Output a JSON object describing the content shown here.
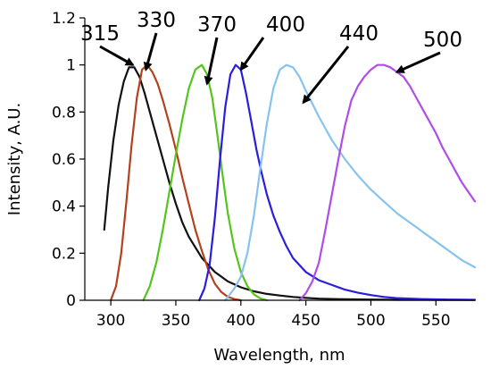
{
  "chart_data": {
    "type": "line",
    "title": "",
    "xlabel": "Wavelength, nm",
    "ylabel": "Intensity, A.U.",
    "xlim": [
      280,
      580
    ],
    "ylim": [
      0,
      1.2
    ],
    "x_ticks": [
      300,
      350,
      400,
      450,
      500,
      550
    ],
    "x_tick_labels": [
      "300",
      "350",
      "400",
      "450",
      "500",
      "550"
    ],
    "y_ticks": [
      0,
      0.2,
      0.4,
      0.6,
      0.8,
      1,
      1.2
    ],
    "y_tick_labels": [
      "0",
      "0.2",
      "0.4",
      "0.6",
      "0.8",
      "1",
      "1.2"
    ],
    "grid": false,
    "legend": "none",
    "series": [
      {
        "color": "#111111",
        "x": [
          295,
          298,
          302,
          306,
          310,
          314,
          318,
          322,
          326,
          330,
          335,
          340,
          345,
          350,
          355,
          360,
          370,
          380,
          390,
          400,
          410,
          420,
          430,
          440,
          450,
          460,
          480,
          500,
          520,
          540,
          560,
          580
        ],
        "y": [
          0.3,
          0.48,
          0.68,
          0.83,
          0.93,
          0.99,
          0.99,
          0.95,
          0.88,
          0.8,
          0.7,
          0.6,
          0.5,
          0.41,
          0.33,
          0.27,
          0.18,
          0.12,
          0.08,
          0.055,
          0.038,
          0.027,
          0.02,
          0.014,
          0.01,
          0.007,
          0.004,
          0.003,
          0.002,
          0.002,
          0.001,
          0.001
        ]
      },
      {
        "color": "#b2421e",
        "x": [
          300,
          304,
          308,
          312,
          316,
          320,
          324,
          328,
          332,
          336,
          340,
          345,
          350,
          355,
          360,
          365,
          370,
          375,
          380,
          385,
          390,
          395,
          400
        ],
        "y": [
          0.0,
          0.06,
          0.2,
          0.42,
          0.66,
          0.86,
          0.98,
          1.0,
          0.97,
          0.92,
          0.85,
          0.75,
          0.64,
          0.52,
          0.41,
          0.3,
          0.21,
          0.13,
          0.07,
          0.035,
          0.015,
          0.005,
          0.0
        ]
      },
      {
        "color": "#55c41e",
        "x": [
          325,
          330,
          335,
          340,
          345,
          350,
          355,
          360,
          365,
          370,
          374,
          378,
          382,
          386,
          390,
          395,
          400,
          405,
          410,
          415,
          420
        ],
        "y": [
          0.0,
          0.06,
          0.16,
          0.3,
          0.46,
          0.62,
          0.77,
          0.9,
          0.98,
          1.0,
          0.96,
          0.86,
          0.7,
          0.53,
          0.37,
          0.22,
          0.12,
          0.06,
          0.025,
          0.008,
          0.0
        ]
      },
      {
        "color": "#2a1ddc",
        "x": [
          368,
          372,
          376,
          380,
          384,
          388,
          392,
          396,
          400,
          404,
          408,
          412,
          416,
          420,
          425,
          430,
          435,
          440,
          450,
          460,
          470,
          480,
          490,
          500,
          510,
          520,
          540,
          560,
          580
        ],
        "y": [
          0.0,
          0.05,
          0.15,
          0.35,
          0.6,
          0.82,
          0.96,
          1.0,
          0.98,
          0.88,
          0.76,
          0.64,
          0.54,
          0.45,
          0.36,
          0.29,
          0.23,
          0.18,
          0.12,
          0.085,
          0.065,
          0.045,
          0.032,
          0.022,
          0.014,
          0.009,
          0.005,
          0.003,
          0.002
        ]
      },
      {
        "color": "#87c3ef",
        "x": [
          388,
          395,
          400,
          405,
          410,
          415,
          420,
          425,
          430,
          435,
          440,
          445,
          450,
          460,
          470,
          480,
          490,
          500,
          510,
          520,
          530,
          540,
          550,
          560,
          570,
          580
        ],
        "y": [
          0.0,
          0.05,
          0.1,
          0.2,
          0.36,
          0.56,
          0.75,
          0.9,
          0.98,
          1.0,
          0.99,
          0.95,
          0.89,
          0.78,
          0.68,
          0.6,
          0.53,
          0.47,
          0.42,
          0.37,
          0.33,
          0.29,
          0.25,
          0.21,
          0.17,
          0.14
        ]
      },
      {
        "color": "#b04de8",
        "x": [
          445,
          450,
          455,
          460,
          465,
          470,
          475,
          480,
          485,
          490,
          495,
          500,
          505,
          510,
          515,
          520,
          525,
          530,
          535,
          540,
          545,
          550,
          555,
          560,
          565,
          570,
          575,
          580
        ],
        "y": [
          0.0,
          0.03,
          0.08,
          0.16,
          0.3,
          0.45,
          0.6,
          0.74,
          0.85,
          0.91,
          0.95,
          0.98,
          1.0,
          1.0,
          0.99,
          0.97,
          0.95,
          0.91,
          0.86,
          0.81,
          0.76,
          0.71,
          0.65,
          0.6,
          0.55,
          0.5,
          0.46,
          0.42
        ]
      }
    ],
    "annotations": [
      {
        "text": "315",
        "arrow_to": [
          317,
          1.0
        ]
      },
      {
        "text": "330",
        "arrow_to": [
          327,
          0.98
        ]
      },
      {
        "text": "370",
        "arrow_to": [
          374,
          0.92
        ]
      },
      {
        "text": "400",
        "arrow_to": [
          400,
          0.98
        ]
      },
      {
        "text": "440",
        "arrow_to": [
          448,
          0.84
        ]
      },
      {
        "text": "500",
        "arrow_to": [
          520,
          0.97
        ]
      }
    ]
  }
}
